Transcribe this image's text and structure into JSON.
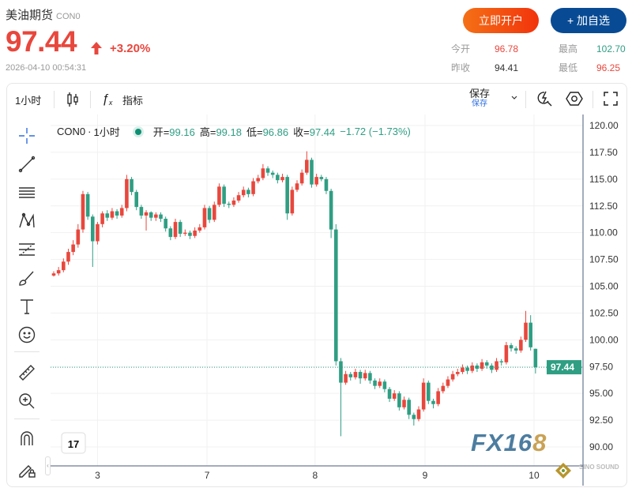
{
  "header": {
    "name": "美油期货",
    "code": "CON0",
    "price": "97.44",
    "change_pct": "+3.20%",
    "direction": "up",
    "timestamp": "2026-04-10 00:54:31",
    "open_account_label": "立即开户",
    "add_watch_label": "+ 加自选",
    "stats": {
      "open_label": "今开",
      "open": "96.78",
      "prev_close_label": "昨收",
      "prev_close": "94.41",
      "high_label": "最高",
      "high": "102.70",
      "low_label": "最低",
      "low": "96.25"
    }
  },
  "toolbar": {
    "interval": "1小时",
    "indicators_label": "指标",
    "save_label": "保存",
    "save_sub": "保存",
    "icons": [
      "candlestick-icon",
      "fx-icon",
      "chevron-down-icon",
      "quick-search-icon",
      "settings-hexagon-icon",
      "fullscreen-icon"
    ]
  },
  "sidebar": {
    "tools": [
      "crosshair-icon",
      "trend-line-icon",
      "horizontal-lines-icon",
      "pattern-icon",
      "fib-icon",
      "brush-icon",
      "text-icon",
      "emoji-icon",
      "ruler-icon",
      "zoom-in-icon",
      "magnet-icon",
      "lock-drawing-icon"
    ]
  },
  "legend": {
    "symbol": "CON0",
    "sep": "·",
    "interval": "1小时",
    "o_label": "开=",
    "o": "99.16",
    "h_label": "高=",
    "h": "99.18",
    "l_label": "低=",
    "l": "96.86",
    "c_label": "收=",
    "c": "97.44",
    "change": "−1.72 (−1.73%)"
  },
  "colors": {
    "up": "#e8473d",
    "down": "#2f9e83",
    "accent": "#084b94",
    "last_price": "#2f9e83"
  },
  "watermark": {
    "logo": "FX168",
    "partner": "SINO SOUND 澳 聲 樂 園"
  },
  "chart_data": {
    "type": "candlestick",
    "interval": "1小时",
    "ylim": [
      88.5,
      121
    ],
    "y_ticks": [
      "120.00",
      "117.50",
      "115.00",
      "112.50",
      "110.00",
      "107.50",
      "105.00",
      "102.50",
      "100.00",
      "97.50",
      "95.00",
      "92.50",
      "90.00"
    ],
    "x_ticks": [
      {
        "label": "3",
        "bar": 9
      },
      {
        "label": "7",
        "bar": 31.5
      },
      {
        "label": "8",
        "bar": 53.7
      },
      {
        "label": "9",
        "bar": 76.3
      },
      {
        "label": "10",
        "bar": 98.7
      }
    ],
    "last_price": "97.44",
    "ohlc": [
      [
        106.0,
        106.4,
        105.9,
        106.2
      ],
      [
        106.2,
        106.8,
        106.0,
        106.5
      ],
      [
        106.5,
        107.6,
        106.3,
        107.3
      ],
      [
        107.3,
        108.5,
        107.0,
        108.2
      ],
      [
        108.2,
        109.3,
        107.9,
        108.9
      ],
      [
        108.9,
        110.8,
        108.6,
        110.3
      ],
      [
        110.3,
        113.9,
        110.0,
        113.6
      ],
      [
        113.6,
        113.8,
        111.2,
        111.5
      ],
      [
        111.5,
        111.7,
        106.8,
        109.2
      ],
      [
        109.2,
        111.0,
        108.9,
        110.8
      ],
      [
        110.8,
        112.0,
        110.5,
        111.8
      ],
      [
        111.8,
        112.1,
        111.1,
        111.4
      ],
      [
        111.4,
        112.3,
        111.2,
        112.0
      ],
      [
        112.0,
        112.2,
        111.3,
        111.6
      ],
      [
        111.6,
        112.6,
        111.4,
        112.3
      ],
      [
        112.3,
        115.4,
        112.0,
        115.0
      ],
      [
        115.0,
        115.2,
        113.5,
        113.8
      ],
      [
        113.8,
        114.0,
        112.1,
        112.4
      ],
      [
        112.4,
        112.6,
        111.3,
        111.6
      ],
      [
        111.6,
        112.1,
        110.2,
        111.9
      ],
      [
        111.9,
        112.0,
        111.1,
        111.4
      ],
      [
        111.4,
        111.9,
        111.1,
        111.7
      ],
      [
        111.7,
        111.9,
        111.0,
        111.3
      ],
      [
        111.3,
        111.5,
        110.1,
        110.4
      ],
      [
        110.4,
        110.6,
        109.3,
        109.6
      ],
      [
        109.6,
        111.3,
        109.4,
        111.0
      ],
      [
        111.0,
        111.2,
        109.6,
        109.9
      ],
      [
        109.9,
        110.3,
        109.7,
        110.0
      ],
      [
        110.0,
        110.2,
        109.4,
        109.7
      ],
      [
        109.7,
        110.5,
        109.5,
        110.2
      ],
      [
        110.2,
        110.8,
        110.0,
        110.5
      ],
      [
        110.5,
        112.6,
        110.3,
        112.3
      ],
      [
        112.3,
        112.5,
        110.9,
        111.2
      ],
      [
        111.2,
        112.9,
        111.0,
        112.6
      ],
      [
        112.6,
        114.6,
        112.4,
        114.3
      ],
      [
        114.3,
        114.5,
        112.4,
        112.7
      ],
      [
        112.7,
        112.9,
        112.3,
        112.6
      ],
      [
        112.6,
        113.3,
        112.4,
        113.0
      ],
      [
        113.0,
        113.8,
        112.8,
        113.5
      ],
      [
        113.5,
        114.3,
        113.3,
        114.0
      ],
      [
        114.0,
        114.2,
        113.3,
        113.6
      ],
      [
        113.6,
        115.1,
        113.4,
        114.8
      ],
      [
        114.8,
        115.4,
        114.6,
        115.1
      ],
      [
        115.1,
        116.4,
        114.9,
        116.0
      ],
      [
        116.0,
        116.2,
        115.3,
        115.6
      ],
      [
        115.6,
        115.8,
        115.1,
        115.4
      ],
      [
        115.4,
        115.6,
        114.6,
        114.9
      ],
      [
        114.9,
        115.5,
        114.7,
        115.2
      ],
      [
        115.2,
        115.4,
        111.2,
        111.8
      ],
      [
        111.8,
        114.3,
        111.6,
        114.0
      ],
      [
        114.0,
        114.9,
        113.8,
        114.6
      ],
      [
        114.6,
        115.9,
        114.4,
        115.6
      ],
      [
        115.6,
        117.6,
        115.4,
        116.8
      ],
      [
        116.8,
        117.0,
        114.2,
        114.5
      ],
      [
        114.5,
        115.5,
        114.3,
        115.2
      ],
      [
        115.2,
        115.4,
        114.8,
        115.0
      ],
      [
        115.0,
        115.2,
        113.6,
        113.9
      ],
      [
        113.9,
        114.1,
        109.5,
        110.3
      ],
      [
        110.3,
        110.8,
        97.6,
        98.0
      ],
      [
        98.0,
        98.3,
        91.0,
        96.0
      ],
      [
        96.0,
        97.1,
        95.8,
        96.8
      ],
      [
        96.8,
        97.0,
        96.2,
        96.5
      ],
      [
        96.5,
        97.3,
        96.3,
        97.0
      ],
      [
        97.0,
        97.2,
        95.9,
        96.4
      ],
      [
        96.4,
        97.2,
        96.2,
        96.9
      ],
      [
        96.9,
        97.1,
        95.9,
        96.2
      ],
      [
        96.2,
        96.4,
        95.4,
        95.7
      ],
      [
        95.7,
        96.4,
        95.5,
        96.1
      ],
      [
        96.1,
        96.3,
        95.1,
        95.4
      ],
      [
        95.4,
        95.6,
        94.2,
        94.5
      ],
      [
        94.5,
        95.3,
        94.3,
        95.0
      ],
      [
        95.0,
        95.2,
        93.4,
        93.7
      ],
      [
        93.7,
        94.7,
        93.5,
        94.4
      ],
      [
        94.4,
        94.6,
        92.6,
        93.0
      ],
      [
        93.0,
        93.2,
        92.0,
        92.6
      ],
      [
        92.6,
        93.8,
        92.4,
        93.5
      ],
      [
        93.5,
        96.4,
        93.3,
        96.0
      ],
      [
        96.0,
        96.2,
        94.0,
        94.3
      ],
      [
        94.3,
        94.5,
        93.6,
        94.0
      ],
      [
        94.0,
        95.5,
        93.8,
        95.2
      ],
      [
        95.2,
        96.0,
        95.0,
        95.7
      ],
      [
        95.7,
        96.6,
        95.5,
        96.3
      ],
      [
        96.3,
        97.1,
        96.1,
        96.8
      ],
      [
        96.8,
        97.3,
        96.6,
        97.0
      ],
      [
        97.0,
        97.7,
        96.8,
        97.4
      ],
      [
        97.4,
        97.6,
        96.8,
        97.1
      ],
      [
        97.1,
        97.9,
        96.9,
        97.6
      ],
      [
        97.6,
        97.8,
        97.0,
        97.3
      ],
      [
        97.3,
        98.2,
        97.1,
        97.9
      ],
      [
        97.9,
        98.1,
        97.3,
        97.6
      ],
      [
        97.6,
        97.8,
        96.9,
        97.2
      ],
      [
        97.2,
        98.3,
        97.0,
        98.0
      ],
      [
        98.0,
        98.2,
        97.6,
        97.9
      ],
      [
        97.9,
        99.8,
        97.7,
        99.5
      ],
      [
        99.5,
        99.7,
        98.9,
        99.2
      ],
      [
        99.2,
        99.4,
        98.7,
        99.0
      ],
      [
        99.0,
        100.3,
        98.8,
        100.0
      ],
      [
        100.0,
        102.7,
        99.8,
        101.6
      ],
      [
        101.6,
        102.3,
        99.0,
        99.3
      ],
      [
        99.16,
        99.18,
        96.86,
        97.44
      ]
    ]
  }
}
